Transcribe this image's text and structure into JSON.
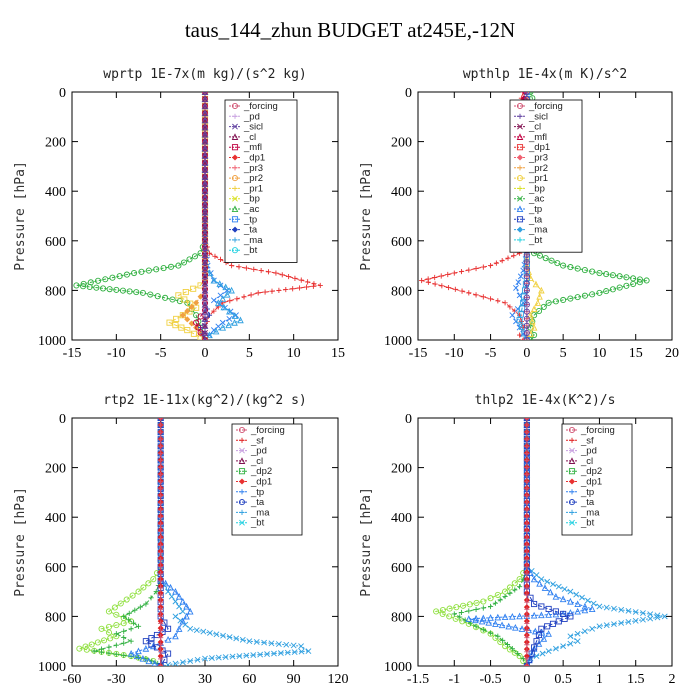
{
  "title": "taus_144_zhun  BUDGET at245E,-12N",
  "colors": {
    "_forcing": "#d05070",
    "_pd": "#c8a0e0",
    "_sicl": "#6040a0",
    "_cl": "#801050",
    "_mfl": "#c00040",
    "_dp1": "#e83030",
    "_pr3": "#f06070",
    "_pr2": "#f0a040",
    "_pr1": "#f0d040",
    "_bp": "#d8e020",
    "_ac": "#30b040",
    "_tp": "#3080f0",
    "_ta": "#2040c0",
    "_ma": "#30a0e0",
    "_bt": "#20d0e0",
    "_sf": "#e02020",
    "_dp2": "#30b040",
    "_dp1b": "#90e040"
  },
  "chart_data": [
    {
      "type": "line",
      "title": "wprtp  1E-7x(m kg)/(s^2 kg)",
      "ylabel": "Pressure [hPa]",
      "xlim": [
        -15,
        15
      ],
      "ylim": [
        1000,
        0
      ],
      "xticks": [
        -15,
        -10,
        -5,
        0,
        5,
        10,
        15
      ],
      "yticks": [
        0,
        200,
        400,
        600,
        800,
        1000
      ],
      "legend_position": "top-right",
      "legend": [
        "_forcing",
        "_pd",
        "_sicl",
        "_cl",
        "_mfl",
        "_dp1",
        "_pr3",
        "_pr2",
        "_pr1",
        "_bp",
        "_ac",
        "_tp",
        "_ta",
        "_ma",
        "_bt"
      ],
      "series": [
        {
          "name": "_ac",
          "color": "#30b040",
          "x": [
            0,
            0,
            0,
            -0.5,
            -3,
            -8,
            -14.5,
            -7,
            -2,
            -1,
            -0.5,
            0
          ],
          "y": [
            0,
            400,
            600,
            650,
            700,
            730,
            780,
            810,
            850,
            900,
            950,
            1000
          ]
        },
        {
          "name": "_dp1",
          "color": "#e83030",
          "x": [
            0,
            0,
            0,
            0.5,
            3,
            8,
            13,
            6,
            2,
            0.5,
            0,
            0
          ],
          "y": [
            0,
            400,
            600,
            650,
            700,
            730,
            780,
            810,
            850,
            900,
            950,
            1000
          ]
        },
        {
          "name": "_tp",
          "color": "#3080f0",
          "x": [
            0,
            0,
            0.3,
            1,
            2.5,
            1,
            3.5,
            2,
            1,
            0.5,
            0
          ],
          "y": [
            0,
            600,
            700,
            760,
            800,
            840,
            900,
            930,
            960,
            980,
            1000
          ]
        },
        {
          "name": "_ma",
          "color": "#30a0e0",
          "x": [
            0,
            0,
            1,
            3,
            1.5,
            4,
            2,
            0.5,
            0
          ],
          "y": [
            0,
            700,
            760,
            800,
            850,
            920,
            950,
            980,
            1000
          ]
        },
        {
          "name": "_pr1",
          "color": "#f0d040",
          "x": [
            0,
            0,
            -0.5,
            -3,
            -1,
            -4,
            -2,
            -0.5,
            0
          ],
          "y": [
            0,
            750,
            780,
            820,
            870,
            930,
            960,
            990,
            1000
          ]
        },
        {
          "name": "_pr2",
          "color": "#f0a040",
          "x": [
            0,
            0,
            -1,
            -2.5,
            -1,
            0
          ],
          "y": [
            0,
            800,
            850,
            900,
            950,
            1000
          ]
        },
        {
          "name": "_ta",
          "color": "#2040c0",
          "x": [
            0,
            0,
            0.5,
            -0.5,
            0
          ],
          "y": [
            0,
            850,
            900,
            950,
            1000
          ]
        },
        {
          "name": "_mfl",
          "color": "#c00040",
          "x": [
            0,
            0,
            -1,
            -0.5,
            0
          ],
          "y": [
            0,
            880,
            930,
            970,
            1000
          ]
        },
        {
          "name": "_forcing",
          "color": "#d05070",
          "x": [
            0,
            0
          ],
          "y": [
            0,
            1000
          ]
        },
        {
          "name": "_cl",
          "color": "#801050",
          "x": [
            0,
            0
          ],
          "y": [
            0,
            1000
          ]
        },
        {
          "name": "_sicl",
          "color": "#6040a0",
          "x": [
            0,
            0
          ],
          "y": [
            0,
            1000
          ]
        }
      ]
    },
    {
      "type": "line",
      "title": "wpthlp  1E-4x(m K)/s^2",
      "ylabel": "Pressure [hPa]",
      "xlim": [
        -15,
        20
      ],
      "ylim": [
        1000,
        0
      ],
      "xticks": [
        -15,
        -10,
        -5,
        0,
        5,
        10,
        15,
        20
      ],
      "yticks": [
        0,
        200,
        400,
        600,
        800,
        1000
      ],
      "legend_position": "top-right",
      "legend": [
        "_forcing",
        "_sicl",
        "_cl",
        "_mfl",
        "_dp1",
        "_pr3",
        "_pr2",
        "_pr1",
        "_bp",
        "_ac",
        "_tp",
        "_ta",
        "_ma",
        "_bt"
      ],
      "series": [
        {
          "name": "_ac",
          "color": "#30b040",
          "x": [
            0.5,
            1,
            0.5,
            0.5,
            1,
            5,
            10,
            16.5,
            10,
            3,
            1,
            0.5,
            1,
            0.5
          ],
          "y": [
            0,
            50,
            100,
            600,
            650,
            700,
            730,
            760,
            810,
            850,
            900,
            950,
            980,
            1000
          ]
        },
        {
          "name": "_dp1",
          "color": "#e83030",
          "x": [
            -0.5,
            -1,
            -0.5,
            -0.5,
            -1,
            -5,
            -10,
            -14.5,
            -8,
            -3,
            -1,
            -0.5,
            -1,
            -0.5
          ],
          "y": [
            0,
            50,
            100,
            600,
            650,
            700,
            730,
            760,
            810,
            850,
            900,
            950,
            980,
            1000
          ]
        },
        {
          "name": "_tp",
          "color": "#3080f0",
          "x": [
            0,
            0,
            -0.5,
            -1.5,
            -0.5,
            -2,
            -1,
            0
          ],
          "y": [
            0,
            650,
            720,
            790,
            850,
            900,
            950,
            1000
          ]
        },
        {
          "name": "_pr1",
          "color": "#f0d040",
          "x": [
            0,
            0,
            0.5,
            2,
            1.5,
            0.5,
            1,
            0
          ],
          "y": [
            0,
            700,
            750,
            800,
            850,
            900,
            950,
            1000
          ]
        },
        {
          "name": "_ma",
          "color": "#30a0e0",
          "x": [
            0,
            0,
            -0.5,
            -1,
            0
          ],
          "y": [
            0,
            750,
            850,
            920,
            1000
          ]
        },
        {
          "name": "_mfl",
          "color": "#c00040",
          "x": [
            -0.3,
            -0.5,
            0
          ],
          "y": [
            0,
            50,
            100
          ]
        },
        {
          "name": "_forcing",
          "color": "#d05070",
          "x": [
            0,
            0
          ],
          "y": [
            0,
            1000
          ]
        },
        {
          "name": "_sicl",
          "color": "#6040a0",
          "x": [
            0,
            0
          ],
          "y": [
            0,
            1000
          ]
        }
      ]
    },
    {
      "type": "line",
      "title": "rtp2  1E-11x(kg^2)/(kg^2 s)",
      "ylabel": "Pressure [hPa]",
      "xlim": [
        -60,
        120
      ],
      "ylim": [
        1000,
        0
      ],
      "xticks": [
        -60,
        -30,
        0,
        30,
        60,
        90,
        120
      ],
      "yticks": [
        0,
        200,
        400,
        600,
        800,
        1000
      ],
      "legend_position": "top-right",
      "legend": [
        "_forcing",
        "_sf",
        "_pd",
        "_cl",
        "_dp2",
        "_dp1",
        "_tp",
        "_ta",
        "_ma",
        "_bt"
      ],
      "series": [
        {
          "name": "_dp1",
          "color": "#90e040",
          "x": [
            0,
            0,
            -5,
            -15,
            -35,
            -20,
            -40,
            -30,
            -55,
            -20,
            -5,
            0
          ],
          "y": [
            0,
            600,
            650,
            700,
            780,
            820,
            850,
            880,
            930,
            960,
            980,
            1000
          ]
        },
        {
          "name": "_dp2",
          "color": "#30b040",
          "x": [
            0,
            0,
            -3,
            -10,
            -25,
            -15,
            -30,
            -20,
            -45,
            -10,
            -2,
            0
          ],
          "y": [
            0,
            650,
            700,
            750,
            800,
            840,
            870,
            900,
            940,
            970,
            990,
            1000
          ]
        },
        {
          "name": "_ma",
          "color": "#30a0e0",
          "x": [
            0,
            0,
            5,
            15,
            10,
            20,
            60,
            95,
            100,
            30,
            0
          ],
          "y": [
            0,
            650,
            700,
            780,
            800,
            850,
            900,
            920,
            940,
            970,
            1000
          ]
        },
        {
          "name": "_tp",
          "color": "#3080f0",
          "x": [
            0,
            0,
            10,
            20,
            15,
            10,
            -5,
            -20,
            0
          ],
          "y": [
            0,
            650,
            700,
            780,
            820,
            880,
            920,
            950,
            1000
          ]
        },
        {
          "name": "_ta",
          "color": "#2040c0",
          "x": [
            0,
            0,
            5,
            -10,
            5,
            0
          ],
          "y": [
            0,
            800,
            850,
            900,
            950,
            1000
          ]
        },
        {
          "name": "_sf",
          "color": "#e02020",
          "x": [
            0,
            0,
            0
          ],
          "y": [
            0,
            960,
            1000
          ]
        },
        {
          "name": "_forcing",
          "color": "#d05070",
          "x": [
            0,
            0
          ],
          "y": [
            0,
            1000
          ]
        }
      ]
    },
    {
      "type": "line",
      "title": "thlp2  1E-4x(K^2)/s",
      "ylabel": "Pressure [hPa]",
      "xlim": [
        -1.5,
        2.0
      ],
      "ylim": [
        1000,
        0
      ],
      "xticks": [
        -1.5,
        -1.0,
        -0.5,
        0.0,
        0.5,
        1.0,
        1.5,
        2.0
      ],
      "yticks": [
        0,
        200,
        400,
        600,
        800,
        1000
      ],
      "legend_position": "top-right",
      "legend": [
        "_forcing",
        "_sf",
        "_pd",
        "_cl",
        "_dp2",
        "_dp1",
        "_tp",
        "_ta",
        "_ma",
        "_bt"
      ],
      "series": [
        {
          "name": "_dp1",
          "color": "#90e040",
          "x": [
            0,
            0,
            -0.1,
            -0.3,
            -0.6,
            -1.25,
            -0.8,
            -0.5,
            -0.3,
            -0.1,
            0
          ],
          "y": [
            0,
            600,
            650,
            700,
            740,
            780,
            830,
            870,
            920,
            960,
            1000
          ]
        },
        {
          "name": "_dp2",
          "color": "#30b040",
          "x": [
            0,
            0,
            -0.1,
            -0.3,
            -0.5,
            -1.0,
            -0.7,
            -0.4,
            -0.2,
            -0.05,
            0
          ],
          "y": [
            0,
            620,
            680,
            720,
            760,
            790,
            840,
            880,
            930,
            970,
            1000
          ]
        },
        {
          "name": "_ma",
          "color": "#30a0e0",
          "x": [
            0,
            0,
            0.2,
            0.6,
            1.0,
            1.9,
            1.0,
            0.6,
            0.7,
            0.3,
            0.05,
            0
          ],
          "y": [
            0,
            600,
            650,
            700,
            760,
            800,
            840,
            880,
            900,
            940,
            970,
            1000
          ]
        },
        {
          "name": "_tp",
          "color": "#3080f0",
          "x": [
            0,
            0,
            0.1,
            0.4,
            0.9,
            0.5,
            -0.8,
            0.3,
            0.1,
            0
          ],
          "y": [
            0,
            600,
            650,
            720,
            770,
            790,
            810,
            870,
            930,
            1000
          ]
        },
        {
          "name": "_ta",
          "color": "#2040c0",
          "x": [
            0,
            0,
            0.1,
            0.6,
            0.2,
            0
          ],
          "y": [
            0,
            700,
            750,
            800,
            850,
            1000
          ]
        },
        {
          "name": "_sf",
          "color": "#e02020",
          "x": [
            0,
            0,
            0
          ],
          "y": [
            0,
            960,
            1000
          ]
        },
        {
          "name": "_forcing",
          "color": "#d05070",
          "x": [
            0,
            0
          ],
          "y": [
            0,
            1000
          ]
        }
      ]
    }
  ]
}
